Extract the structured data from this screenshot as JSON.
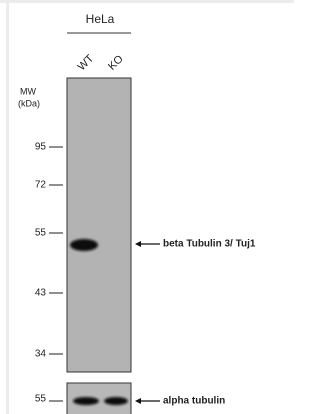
{
  "header": "HeLa",
  "lanes": [
    "WT",
    "KO"
  ],
  "mw_label": [
    "MW",
    "(kDa)"
  ],
  "markers": [
    "95",
    "72",
    "55",
    "43",
    "34"
  ],
  "band_label": "beta Tubulin 3/ Tuj1",
  "loading": {
    "marker": "55",
    "label": "alpha tubulin"
  }
}
